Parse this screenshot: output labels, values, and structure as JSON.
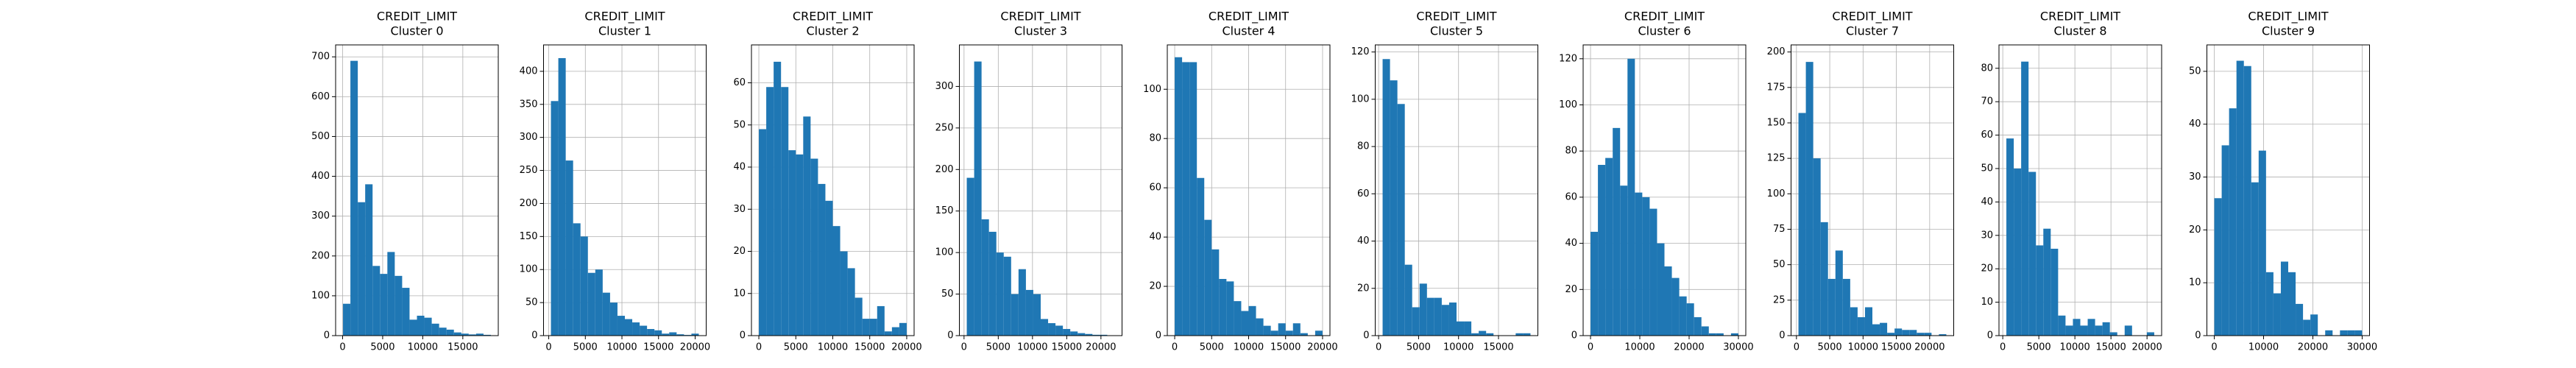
{
  "chart_data": [
    {
      "type": "histogram",
      "title": "CREDIT_LIMIT",
      "subtitle": "Cluster 0",
      "color": "#1f77b4",
      "grid": true,
      "bins": [
        50,
        972.5,
        1895,
        2817.5,
        3740,
        4662.5,
        5585,
        6507.5,
        7430,
        8352.5,
        9275,
        10197.5,
        11120,
        12042.5,
        12965,
        13887.5,
        14810,
        15732.5,
        16655,
        17577.5,
        18500
      ],
      "values": [
        80,
        690,
        335,
        380,
        175,
        155,
        210,
        150,
        120,
        40,
        50,
        45,
        30,
        20,
        15,
        8,
        5,
        3,
        5,
        2
      ],
      "xlim": [
        -872,
        19422
      ],
      "ylim": [
        0,
        730
      ],
      "xticks": [
        0,
        5000,
        10000,
        15000
      ],
      "yticks": [
        0,
        100,
        200,
        300,
        400,
        500,
        600,
        700
      ]
    },
    {
      "type": "histogram",
      "title": "CREDIT_LIMIT",
      "subtitle": "Cluster 1",
      "color": "#1f77b4",
      "grid": true,
      "bins": [
        300,
        1310,
        2320,
        3330,
        4340,
        5350,
        6360,
        7370,
        8380,
        9390,
        10400,
        11410,
        12420,
        13430,
        14440,
        15450,
        16460,
        17470,
        18480,
        19490,
        20500
      ],
      "values": [
        355,
        420,
        265,
        170,
        150,
        95,
        100,
        65,
        50,
        30,
        25,
        20,
        15,
        10,
        8,
        3,
        5,
        2,
        1,
        3
      ],
      "xlim": [
        -710,
        21510
      ],
      "ylim": [
        0,
        440
      ],
      "xticks": [
        0,
        5000,
        10000,
        15000,
        20000
      ],
      "yticks": [
        0,
        50,
        100,
        150,
        200,
        250,
        300,
        350,
        400
      ]
    },
    {
      "type": "histogram",
      "title": "CREDIT_LIMIT",
      "subtitle": "Cluster 2",
      "color": "#1f77b4",
      "grid": true,
      "bins": [
        0,
        1000,
        2000,
        3000,
        4000,
        5000,
        6000,
        7000,
        8000,
        9000,
        10000,
        11000,
        12000,
        13000,
        14000,
        15000,
        16000,
        17000,
        18000,
        19000,
        20000
      ],
      "values": [
        49,
        59,
        65,
        59,
        44,
        43,
        52,
        42,
        36,
        32,
        26,
        20,
        16,
        9,
        4,
        4,
        7,
        1,
        2,
        3
      ],
      "xlim": [
        -1000,
        21000
      ],
      "ylim": [
        0,
        69
      ],
      "xticks": [
        0,
        5000,
        10000,
        15000,
        20000
      ],
      "yticks": [
        0,
        10,
        20,
        30,
        40,
        50,
        60
      ]
    },
    {
      "type": "histogram",
      "title": "CREDIT_LIMIT",
      "subtitle": "Cluster 3",
      "color": "#1f77b4",
      "grid": true,
      "bins": [
        400,
        1480,
        2560,
        3640,
        4720,
        5800,
        6880,
        7960,
        9040,
        10120,
        11200,
        12280,
        13360,
        14440,
        15520,
        16600,
        17680,
        18760,
        19840,
        20920,
        22000
      ],
      "values": [
        190,
        330,
        140,
        125,
        100,
        95,
        50,
        80,
        55,
        50,
        20,
        15,
        12,
        8,
        5,
        3,
        2,
        1,
        1,
        0
      ],
      "xlim": [
        -680,
        23080
      ],
      "ylim": [
        0,
        350
      ],
      "xticks": [
        0,
        5000,
        10000,
        15000,
        20000
      ],
      "yticks": [
        0,
        50,
        100,
        150,
        200,
        250,
        300
      ]
    },
    {
      "type": "histogram",
      "title": "CREDIT_LIMIT",
      "subtitle": "Cluster 4",
      "color": "#1f77b4",
      "grid": true,
      "bins": [
        0,
        1000,
        2000,
        3000,
        4000,
        5000,
        6000,
        7000,
        8000,
        9000,
        10000,
        11000,
        12000,
        13000,
        14000,
        15000,
        16000,
        17000,
        18000,
        19000,
        20000
      ],
      "values": [
        113,
        111,
        111,
        64,
        47,
        35,
        23,
        22,
        14,
        10,
        12,
        7,
        4,
        2,
        5,
        2,
        5,
        1,
        0,
        2
      ],
      "xlim": [
        -1000,
        21000
      ],
      "ylim": [
        0,
        118
      ],
      "xticks": [
        0,
        5000,
        10000,
        15000,
        20000
      ],
      "yticks": [
        0,
        20,
        40,
        60,
        80,
        100
      ]
    },
    {
      "type": "histogram",
      "title": "CREDIT_LIMIT",
      "subtitle": "Cluster 5",
      "color": "#1f77b4",
      "grid": true,
      "bins": [
        500,
        1425,
        2350,
        3275,
        4200,
        5125,
        6050,
        6975,
        7900,
        8825,
        9750,
        10675,
        11600,
        12525,
        13450,
        14375,
        15300,
        16225,
        17150,
        18075,
        19000
      ],
      "values": [
        117,
        108,
        98,
        30,
        12,
        22,
        16,
        16,
        13,
        14,
        6,
        6,
        1,
        2,
        1,
        0,
        0,
        0,
        1,
        1
      ],
      "xlim": [
        -425,
        19925
      ],
      "ylim": [
        0,
        123
      ],
      "xticks": [
        0,
        5000,
        10000,
        15000
      ],
      "yticks": [
        0,
        20,
        40,
        60,
        80,
        100,
        120
      ]
    },
    {
      "type": "histogram",
      "title": "CREDIT_LIMIT",
      "subtitle": "Cluster 6",
      "color": "#1f77b4",
      "grid": true,
      "bins": [
        0,
        1500,
        3000,
        4500,
        6000,
        7500,
        9000,
        10500,
        12000,
        13500,
        15000,
        16500,
        18000,
        19500,
        21000,
        22500,
        24000,
        25500,
        27000,
        28500,
        30000
      ],
      "values": [
        45,
        74,
        77,
        90,
        65,
        120,
        62,
        60,
        55,
        40,
        30,
        25,
        17,
        14,
        8,
        4,
        1,
        1,
        0,
        1
      ],
      "xlim": [
        -1500,
        31500
      ],
      "ylim": [
        0,
        126
      ],
      "xticks": [
        0,
        10000,
        20000,
        30000
      ],
      "yticks": [
        0,
        20,
        40,
        60,
        80,
        100,
        120
      ]
    },
    {
      "type": "histogram",
      "title": "CREDIT_LIMIT",
      "subtitle": "Cluster 7",
      "color": "#1f77b4",
      "grid": true,
      "bins": [
        300,
        1410,
        2520,
        3630,
        4740,
        5850,
        6960,
        8070,
        9180,
        10290,
        11400,
        12510,
        13620,
        14730,
        15840,
        16950,
        18060,
        19170,
        20280,
        21390,
        22500
      ],
      "values": [
        157,
        193,
        125,
        80,
        40,
        60,
        40,
        20,
        13,
        20,
        8,
        9,
        2,
        5,
        4,
        4,
        2,
        2,
        0,
        1
      ],
      "xlim": [
        -810,
        23610
      ],
      "ylim": [
        0,
        205
      ],
      "xticks": [
        0,
        5000,
        10000,
        15000,
        20000
      ],
      "yticks": [
        0,
        25,
        50,
        75,
        100,
        125,
        150,
        175,
        200
      ]
    },
    {
      "type": "histogram",
      "title": "CREDIT_LIMIT",
      "subtitle": "Cluster 8",
      "color": "#1f77b4",
      "grid": true,
      "bins": [
        500,
        1525,
        2550,
        3575,
        4600,
        5625,
        6650,
        7675,
        8700,
        9725,
        10750,
        11775,
        12800,
        13825,
        14850,
        15875,
        16900,
        17925,
        18950,
        19975,
        21000
      ],
      "values": [
        59,
        50,
        82,
        49,
        27,
        32,
        26,
        6,
        3,
        5,
        3,
        5,
        3,
        4,
        1,
        0,
        3,
        0,
        0,
        1
      ],
      "xlim": [
        -525,
        22025
      ],
      "ylim": [
        0,
        87
      ],
      "xticks": [
        0,
        5000,
        10000,
        15000,
        20000
      ],
      "yticks": [
        0,
        10,
        20,
        30,
        40,
        50,
        60,
        70,
        80
      ]
    },
    {
      "type": "histogram",
      "title": "CREDIT_LIMIT",
      "subtitle": "Cluster 9",
      "color": "#1f77b4",
      "grid": true,
      "bins": [
        0,
        1500,
        3000,
        4500,
        6000,
        7500,
        9000,
        10500,
        12000,
        13500,
        15000,
        16500,
        18000,
        19500,
        21000,
        22500,
        24000,
        25500,
        27000,
        28500,
        30000
      ],
      "values": [
        26,
        36,
        43,
        52,
        51,
        29,
        35,
        12,
        8,
        14,
        12,
        6,
        3,
        4,
        0,
        1,
        0,
        1,
        1,
        1
      ],
      "xlim": [
        -1500,
        31500
      ],
      "ylim": [
        0,
        55
      ],
      "xticks": [
        0,
        10000,
        20000,
        30000
      ],
      "yticks": [
        0,
        10,
        20,
        30,
        40,
        50
      ]
    }
  ]
}
